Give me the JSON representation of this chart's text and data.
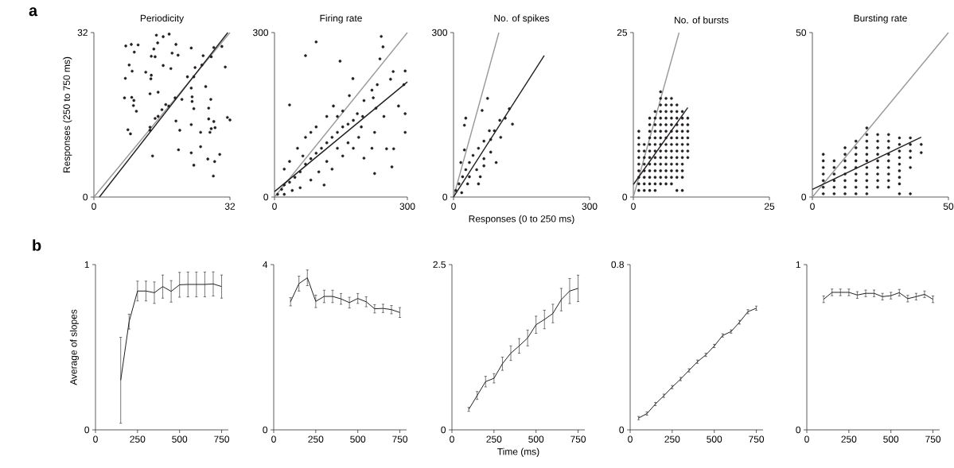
{
  "chart_data": [
    {
      "type": "scatter",
      "title": "Periodicity",
      "ylabel": "Responses (250 to 750 ms)",
      "annotations": [
        "a"
      ],
      "xlim": [
        0,
        32
      ],
      "ylim": [
        0,
        32
      ],
      "xticks": [
        0,
        32
      ],
      "yticks": [
        0,
        32
      ],
      "series": [
        {
          "type": "scatter",
          "marker": "circle",
          "color": "#231f20",
          "x": [
            7.5,
            8.8,
            10.4,
            9.5,
            14.7,
            16.3,
            17.7,
            15,
            19.3,
            22.9,
            14.1,
            13.5,
            14.4,
            18.4,
            19.8,
            8.3,
            9,
            7.4,
            12.2,
            13.5,
            13.4,
            16.3,
            18.1,
            7.2,
            9.4,
            8.9,
            9.3,
            10,
            13.2,
            15.1,
            8,
            8.6,
            13.8,
            19.9,
            20.2,
            19.3,
            22.9,
            23.5,
            23.1,
            25.1,
            22.9,
            23.5,
            26.8,
            28.4,
            28.1,
            29.6,
            27,
            28.2,
            28.5,
            27.6,
            27.3,
            25.1,
            27,
            27.5,
            26.3,
            31.4,
            32,
            30.9,
            22.9,
            23.1,
            13.2,
            14.4,
            16,
            17.6,
            19.1,
            20.7,
            22,
            23.5,
            23.8,
            25.4,
            25.7,
            27.6,
            28.2,
            30.1,
            15.1,
            16.9,
            13.2
          ],
          "values": [
            29.4,
            29.7,
            29.6,
            28.2,
            31.5,
            31.2,
            31.7,
            30,
            29.7,
            29,
            28.8,
            27.4,
            27.3,
            28,
            27.6,
            25.7,
            24.5,
            23.1,
            24.3,
            23.7,
            23,
            25.6,
            25,
            19.3,
            18.8,
            19.4,
            17.8,
            16.7,
            20.1,
            20.4,
            13.1,
            12.3,
            8,
            9.2,
            13,
            14.8,
            14.1,
            17.2,
            18.6,
            9.8,
            8.6,
            6.2,
            7.4,
            6.9,
            4.1,
            8.3,
            15.2,
            14.7,
            13.5,
            13.3,
            12.6,
            12.6,
            17.3,
            19,
            21.5,
            15.5,
            15,
            25.3,
            21.2,
            19.5,
            13.6,
            15.3,
            17,
            17.7,
            19.3,
            19,
            23.4,
            23.4,
            25.2,
            25.7,
            27.5,
            27.3,
            29.1,
            29.3,
            15.7,
            18,
            13
          ]
        },
        {
          "type": "line",
          "color": "#999999",
          "x": [
            0,
            32
          ],
          "values": [
            0,
            32
          ]
        },
        {
          "type": "line",
          "color": "#231f20",
          "x": [
            1.3,
            31.5
          ],
          "values": [
            0,
            32
          ]
        }
      ]
    },
    {
      "type": "scatter",
      "title": "Firing rate",
      "xlim": [
        0,
        300
      ],
      "ylim": [
        0,
        300
      ],
      "xticks": [
        0,
        300
      ],
      "yticks": [
        0,
        300
      ],
      "series": [
        {
          "type": "scatter",
          "marker": "circle",
          "color": "#231f20",
          "x": [
            94,
            70,
            241,
            245,
            148,
            238,
            177,
            34,
            226,
            265,
            269,
            295,
            292,
            280,
            295,
            295,
            202,
            220,
            253,
            268,
            262,
            232,
            220,
            223,
            247,
            229,
            199,
            196,
            226,
            169,
            202,
            7,
            16,
            22,
            34,
            46,
            58,
            70,
            82,
            94,
            106,
            118,
            130,
            142,
            154,
            166,
            178,
            187,
            190,
            166,
            142,
            118,
            100,
            82,
            58,
            40,
            22,
            22,
            34,
            52,
            70,
            94,
            118,
            133,
            154,
            82,
            64,
            112,
            130,
            154,
            178,
            142
          ],
          "values": [
            283,
            258,
            293,
            274,
            248,
            252,
            216,
            168,
            43,
            55,
            88,
            230,
            205,
            166,
            152,
            118,
            71,
            89,
            88,
            229,
            215,
            205,
            195,
            181,
            147,
            162,
            147,
            128,
            118,
            185,
            176,
            5,
            14,
            22,
            27,
            36,
            46,
            60,
            70,
            80,
            89,
            99,
            109,
            118,
            128,
            133,
            140,
            152,
            109,
            99,
            89,
            65,
            46,
            31,
            17,
            12,
            5,
            51,
            65,
            89,
            109,
            128,
            147,
            166,
            157,
            118,
            75,
            22,
            51,
            75,
            89,
            147
          ]
        },
        {
          "type": "line",
          "color": "#999999",
          "x": [
            0,
            300
          ],
          "values": [
            0,
            300
          ]
        },
        {
          "type": "line",
          "color": "#231f20",
          "x": [
            0,
            300
          ],
          "values": [
            10,
            210
          ]
        }
      ]
    },
    {
      "type": "scatter",
      "title": "No. of spikes",
      "xlabel": "Responses (0 to 250 ms)",
      "xlim": [
        0,
        300
      ],
      "ylim": [
        0,
        300
      ],
      "xticks": [
        0,
        300
      ],
      "yticks": [
        0,
        300
      ],
      "series": [
        {
          "type": "scatter",
          "marker": "circle",
          "color": "#231f20",
          "x": [
            75,
            63,
            24,
            27,
            114,
            130,
            123,
            104,
            94,
            82,
            67,
            55,
            43,
            35,
            27,
            20,
            12,
            5,
            35,
            51,
            67,
            59,
            31,
            18,
            67,
            82,
            90,
            79,
            24,
            16,
            55,
            102
          ],
          "values": [
            180,
            158,
            131,
            144,
            144,
            133,
            161,
            109,
            63,
            82,
            102,
            89,
            76,
            63,
            50,
            37,
            24,
            12,
            37,
            50,
            57,
            37,
            24,
            8,
            70,
            105,
            121,
            121,
            86,
            63,
            24,
            140
          ]
        },
        {
          "type": "line",
          "color": "#999999",
          "x": [
            0,
            100
          ],
          "values": [
            0,
            300
          ]
        },
        {
          "type": "line",
          "color": "#231f20",
          "x": [
            0,
            200
          ],
          "values": [
            0,
            258
          ]
        }
      ]
    },
    {
      "type": "scatter",
      "title": "No. of bursts",
      "xlim": [
        0,
        25
      ],
      "ylim": [
        0,
        25
      ],
      "xticks": [
        0,
        25
      ],
      "yticks": [
        0,
        25
      ],
      "series": [
        {
          "type": "scatter",
          "marker": "circle",
          "color": "#231f20",
          "x": [
            1,
            1,
            1,
            1,
            1,
            1,
            1,
            1,
            1,
            1,
            2,
            2,
            2,
            2,
            2,
            2,
            2,
            2,
            3,
            3,
            3,
            3,
            3,
            3,
            3,
            3,
            3,
            3,
            3,
            3,
            4,
            4,
            4,
            4,
            4,
            4,
            4,
            4,
            4,
            4,
            4,
            4,
            4,
            5,
            5,
            5,
            5,
            5,
            5,
            5,
            5,
            5,
            5,
            5,
            5,
            5,
            5,
            5,
            6,
            6,
            6,
            6,
            6,
            6,
            6,
            6,
            6,
            6,
            6,
            6,
            6,
            6,
            7,
            7,
            7,
            7,
            7,
            7,
            7,
            7,
            7,
            7,
            7,
            7,
            7,
            7,
            8,
            8,
            8,
            8,
            8,
            8,
            8,
            8,
            8,
            8,
            8,
            8,
            8,
            9,
            9,
            9,
            9,
            9,
            9,
            9,
            9,
            9,
            9,
            9,
            9,
            10,
            10,
            10,
            10,
            10,
            10,
            10
          ],
          "values": [
            1,
            2,
            3,
            4,
            5,
            6,
            7,
            8,
            9,
            10,
            1,
            2,
            3,
            4,
            5,
            6,
            7,
            8,
            1,
            2,
            3,
            4,
            5,
            6,
            7,
            8,
            9,
            10,
            11,
            12,
            1,
            2,
            3,
            4,
            5,
            6,
            7,
            8,
            9,
            10,
            11,
            12,
            13,
            2,
            3,
            4,
            5,
            6,
            7,
            8,
            9,
            10,
            11,
            12,
            13,
            14,
            15,
            16,
            2,
            3,
            4,
            5,
            6,
            7,
            8,
            9,
            10,
            11,
            12,
            13,
            14,
            15,
            2,
            3,
            4,
            5,
            6,
            7,
            8,
            9,
            10,
            11,
            12,
            13,
            14,
            15,
            1,
            3,
            4,
            5,
            6,
            7,
            8,
            9,
            10,
            11,
            12,
            13,
            14,
            1,
            3,
            4,
            5,
            6,
            7,
            8,
            9,
            10,
            11,
            12,
            13,
            6,
            7,
            8,
            9,
            10,
            11,
            12
          ]
        },
        {
          "type": "line",
          "color": "#999999",
          "x": [
            0,
            8.4
          ],
          "values": [
            0,
            25
          ]
        },
        {
          "type": "line",
          "color": "#231f20",
          "x": [
            0,
            10
          ],
          "values": [
            1.9,
            13.6
          ]
        }
      ]
    },
    {
      "type": "scatter",
      "title": "Bursting rate",
      "xlim": [
        0,
        50
      ],
      "ylim": [
        0,
        50
      ],
      "xticks": [
        0,
        50
      ],
      "yticks": [
        0,
        50
      ],
      "series": [
        {
          "type": "scatter",
          "marker": "circle",
          "color": "#231f20",
          "x": [
            4,
            4,
            4,
            4,
            4,
            4,
            4,
            8,
            8,
            8,
            8,
            8,
            8,
            12,
            12,
            12,
            12,
            12,
            12,
            12,
            12,
            16,
            16,
            16,
            16,
            16,
            16,
            16,
            16,
            16,
            20,
            20,
            20,
            20,
            20,
            20,
            20,
            20,
            20,
            20,
            20,
            24,
            24,
            24,
            24,
            24,
            24,
            24,
            24,
            24,
            28,
            28,
            28,
            28,
            28,
            28,
            28,
            28,
            28,
            32,
            32,
            32,
            32,
            32,
            32,
            32,
            32,
            32,
            36,
            36,
            36,
            36,
            36,
            36,
            40,
            40
          ],
          "values": [
            1,
            3,
            5,
            7,
            9,
            11,
            13,
            1,
            3,
            5,
            7,
            9,
            11,
            1,
            3,
            5,
            7,
            9,
            11,
            13,
            15,
            1,
            3,
            5,
            7,
            9,
            11,
            13,
            15,
            17,
            1,
            3,
            5,
            7,
            9,
            11,
            13,
            15,
            17,
            19,
            21,
            3,
            5,
            7,
            9,
            11,
            13,
            15,
            17,
            19,
            3,
            5,
            7,
            9,
            11,
            13,
            15,
            17,
            19,
            1,
            4,
            6,
            8,
            10,
            12,
            14,
            16,
            18,
            1,
            9,
            12,
            14,
            16,
            18,
            13.5,
            16
          ]
        },
        {
          "type": "line",
          "color": "#999999",
          "x": [
            0,
            50
          ],
          "values": [
            0,
            50
          ]
        },
        {
          "type": "line",
          "color": "#231f20",
          "x": [
            0,
            40
          ],
          "values": [
            2.3,
            18.2
          ]
        }
      ]
    },
    {
      "type": "line",
      "ylabel": "Average of slopes",
      "annotations": [
        "b"
      ],
      "xlim": [
        0,
        790
      ],
      "ylim": [
        0,
        1
      ],
      "xticks": [
        0,
        250,
        500,
        750
      ],
      "yticks": [
        0,
        1
      ],
      "color": "#231f20",
      "x": [
        150,
        200,
        250,
        300,
        350,
        400,
        450,
        500,
        550,
        600,
        650,
        700,
        750
      ],
      "values": [
        0.3,
        0.655,
        0.84,
        0.84,
        0.83,
        0.867,
        0.838,
        0.878,
        0.88,
        0.88,
        0.88,
        0.883,
        0.867
      ],
      "errors": [
        0.26,
        0.045,
        0.06,
        0.06,
        0.065,
        0.07,
        0.065,
        0.075,
        0.075,
        0.075,
        0.075,
        0.073,
        0.07
      ]
    },
    {
      "type": "line",
      "xlim": [
        0,
        790
      ],
      "ylim": [
        0,
        4
      ],
      "xticks": [
        0,
        250,
        500,
        750
      ],
      "yticks": [
        0,
        4
      ],
      "color": "#231f20",
      "x": [
        100,
        150,
        200,
        250,
        300,
        350,
        400,
        450,
        500,
        550,
        600,
        650,
        700,
        750
      ],
      "values": [
        3.1,
        3.54,
        3.68,
        3.11,
        3.23,
        3.23,
        3.17,
        3.08,
        3.18,
        3.1,
        2.93,
        2.94,
        2.91,
        2.84
      ],
      "errors": [
        0.1,
        0.18,
        0.19,
        0.15,
        0.15,
        0.15,
        0.13,
        0.13,
        0.12,
        0.12,
        0.1,
        0.1,
        0.1,
        0.12
      ]
    },
    {
      "type": "line",
      "xlabel": "Time (ms)",
      "xlim": [
        0,
        790
      ],
      "ylim": [
        0,
        2.5
      ],
      "xticks": [
        0,
        250,
        500,
        750
      ],
      "yticks": [
        0,
        2.5
      ],
      "color": "#231f20",
      "x": [
        100,
        150,
        200,
        250,
        300,
        350,
        400,
        450,
        500,
        550,
        600,
        650,
        700,
        750
      ],
      "values": [
        0.31,
        0.52,
        0.73,
        0.78,
        1.0,
        1.16,
        1.27,
        1.39,
        1.59,
        1.67,
        1.76,
        1.97,
        2.1,
        2.14
      ],
      "errors": [
        0.03,
        0.06,
        0.08,
        0.07,
        0.1,
        0.11,
        0.11,
        0.12,
        0.13,
        0.14,
        0.14,
        0.17,
        0.19,
        0.2
      ]
    },
    {
      "type": "line",
      "xlim": [
        0,
        790
      ],
      "ylim": [
        0,
        0.8
      ],
      "xticks": [
        0,
        250,
        500,
        750
      ],
      "yticks": [
        0,
        0.8
      ],
      "color": "#231f20",
      "x": [
        50,
        100,
        150,
        200,
        250,
        300,
        350,
        400,
        450,
        500,
        550,
        600,
        650,
        700,
        750
      ],
      "values": [
        0.057,
        0.079,
        0.125,
        0.165,
        0.207,
        0.246,
        0.288,
        0.33,
        0.363,
        0.406,
        0.457,
        0.476,
        0.521,
        0.572,
        0.589
      ],
      "errors": [
        0.008,
        0.008,
        0.008,
        0.008,
        0.008,
        0.008,
        0.008,
        0.008,
        0.008,
        0.008,
        0.008,
        0.008,
        0.009,
        0.01,
        0.01
      ]
    },
    {
      "type": "line",
      "xlim": [
        0,
        790
      ],
      "ylim": [
        0,
        1
      ],
      "xticks": [
        0,
        250,
        500,
        750
      ],
      "yticks": [
        0,
        1
      ],
      "color": "#231f20",
      "x": [
        100,
        150,
        200,
        250,
        300,
        350,
        400,
        450,
        500,
        550,
        600,
        650,
        700,
        750
      ],
      "values": [
        0.79,
        0.832,
        0.832,
        0.832,
        0.816,
        0.826,
        0.826,
        0.806,
        0.812,
        0.83,
        0.794,
        0.806,
        0.82,
        0.79
      ],
      "errors": [
        0.02,
        0.02,
        0.02,
        0.02,
        0.02,
        0.02,
        0.02,
        0.02,
        0.02,
        0.02,
        0.02,
        0.02,
        0.02,
        0.02
      ]
    }
  ]
}
